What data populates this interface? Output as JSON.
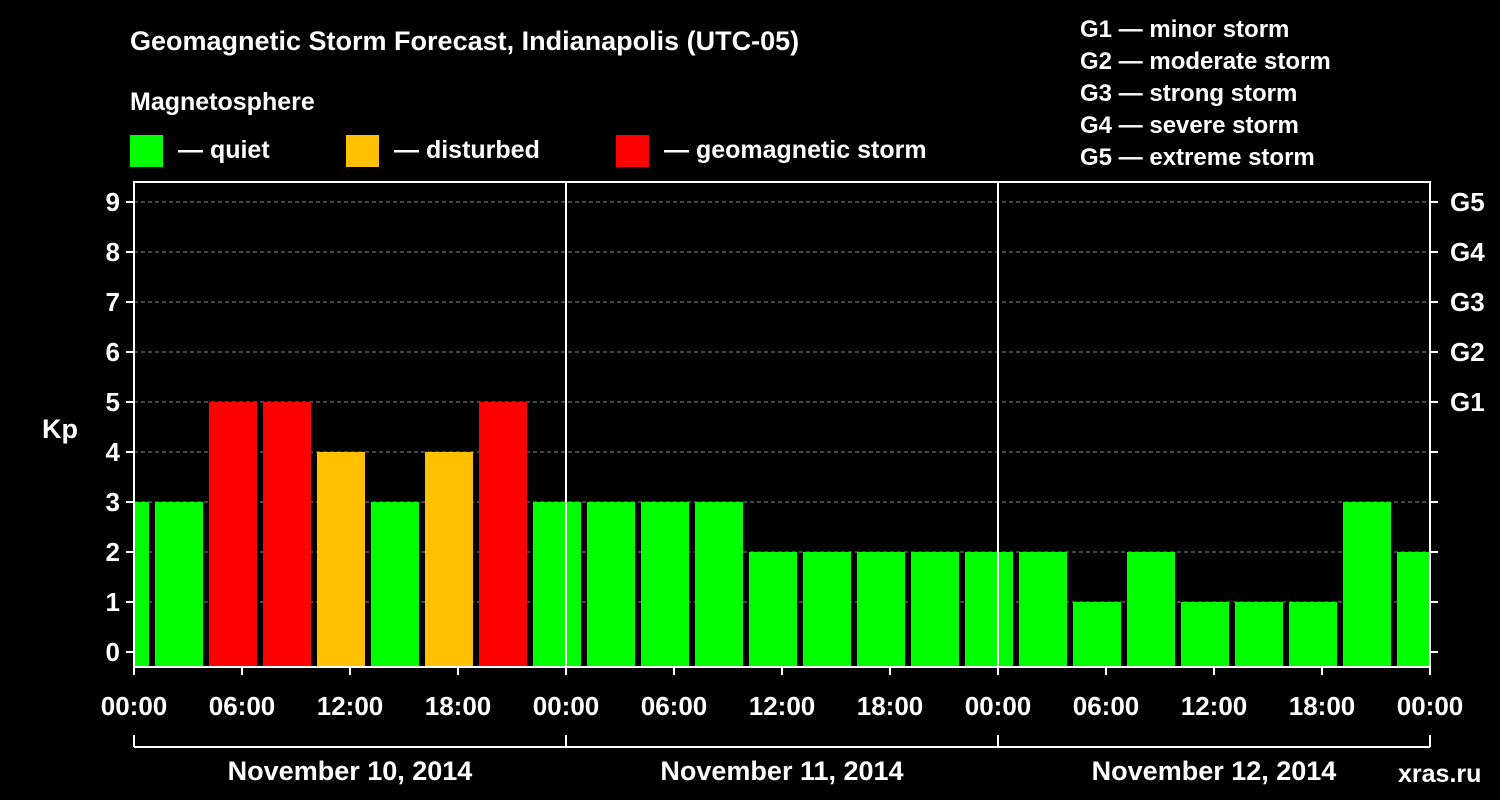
{
  "colors": {
    "background": "#000000",
    "quiet": "#00ff00",
    "disturbed": "#ffc000",
    "storm": "#ff0000",
    "axis": "#ffffff",
    "grid": "#888888",
    "watermark": "#555555"
  },
  "legend": {
    "heading": "Magnetosphere",
    "items": [
      {
        "key": "quiet",
        "label": "— quiet"
      },
      {
        "key": "disturbed",
        "label": "— disturbed"
      },
      {
        "key": "storm",
        "label": "— geomagnetic storm"
      }
    ]
  },
  "gscale": [
    "G1 — minor storm",
    "G2 — moderate storm",
    "G3 — strong storm",
    "G4 — severe storm",
    "G5 — extreme storm"
  ],
  "watermark": "xras.ru",
  "chart_data": {
    "type": "bar",
    "title": "Geomagnetic Storm Forecast, Indianapolis (UTC-05)",
    "ylabel": "Kp",
    "ylim": [
      0,
      9
    ],
    "yticks": [
      "0",
      "1",
      "2",
      "3",
      "4",
      "5",
      "6",
      "7",
      "8",
      "9"
    ],
    "right_axis": [
      {
        "kp": 5,
        "label": "G1"
      },
      {
        "kp": 6,
        "label": "G2"
      },
      {
        "kp": 7,
        "label": "G3"
      },
      {
        "kp": 8,
        "label": "G4"
      },
      {
        "kp": 9,
        "label": "G5"
      }
    ],
    "x_range_hours": [
      0,
      72
    ],
    "xtick_hours": [
      0,
      6,
      12,
      18,
      24,
      30,
      36,
      42,
      48,
      54,
      60,
      66,
      72
    ],
    "xtick_labels": [
      "00:00",
      "06:00",
      "12:00",
      "18:00",
      "00:00",
      "06:00",
      "12:00",
      "18:00",
      "00:00",
      "06:00",
      "12:00",
      "18:00",
      "00:00"
    ],
    "day_divider_hours": [
      24,
      48
    ],
    "days": [
      {
        "label": "November 10, 2014",
        "start": 0,
        "end": 24
      },
      {
        "label": "November 11, 2014",
        "start": 24,
        "end": 48
      },
      {
        "label": "November 12, 2014",
        "start": 48,
        "end": 72
      }
    ],
    "series": [
      {
        "intervals_hours": [
          [
            0,
            1
          ],
          [
            1,
            4
          ],
          [
            4,
            7
          ],
          [
            7,
            10
          ],
          [
            10,
            13
          ],
          [
            13,
            16
          ],
          [
            16,
            19
          ],
          [
            19,
            22
          ],
          [
            22,
            25
          ],
          [
            25,
            28
          ],
          [
            28,
            31
          ],
          [
            31,
            34
          ],
          [
            34,
            37
          ],
          [
            37,
            40
          ],
          [
            40,
            43
          ],
          [
            43,
            46
          ],
          [
            46,
            49
          ],
          [
            49,
            52
          ],
          [
            52,
            55
          ],
          [
            55,
            58
          ],
          [
            58,
            61
          ],
          [
            61,
            64
          ],
          [
            64,
            67
          ],
          [
            67,
            70
          ],
          [
            70,
            72
          ]
        ],
        "values": [
          3,
          3,
          5,
          5,
          4,
          3,
          4,
          5,
          3,
          3,
          3,
          3,
          2,
          2,
          2,
          2,
          2,
          2,
          1,
          2,
          1,
          1,
          1,
          3,
          2
        ],
        "status": [
          "quiet",
          "quiet",
          "storm",
          "storm",
          "disturbed",
          "quiet",
          "disturbed",
          "storm",
          "quiet",
          "quiet",
          "quiet",
          "quiet",
          "quiet",
          "quiet",
          "quiet",
          "quiet",
          "quiet",
          "quiet",
          "quiet",
          "quiet",
          "quiet",
          "quiet",
          "quiet",
          "quiet",
          "quiet"
        ]
      }
    ]
  }
}
